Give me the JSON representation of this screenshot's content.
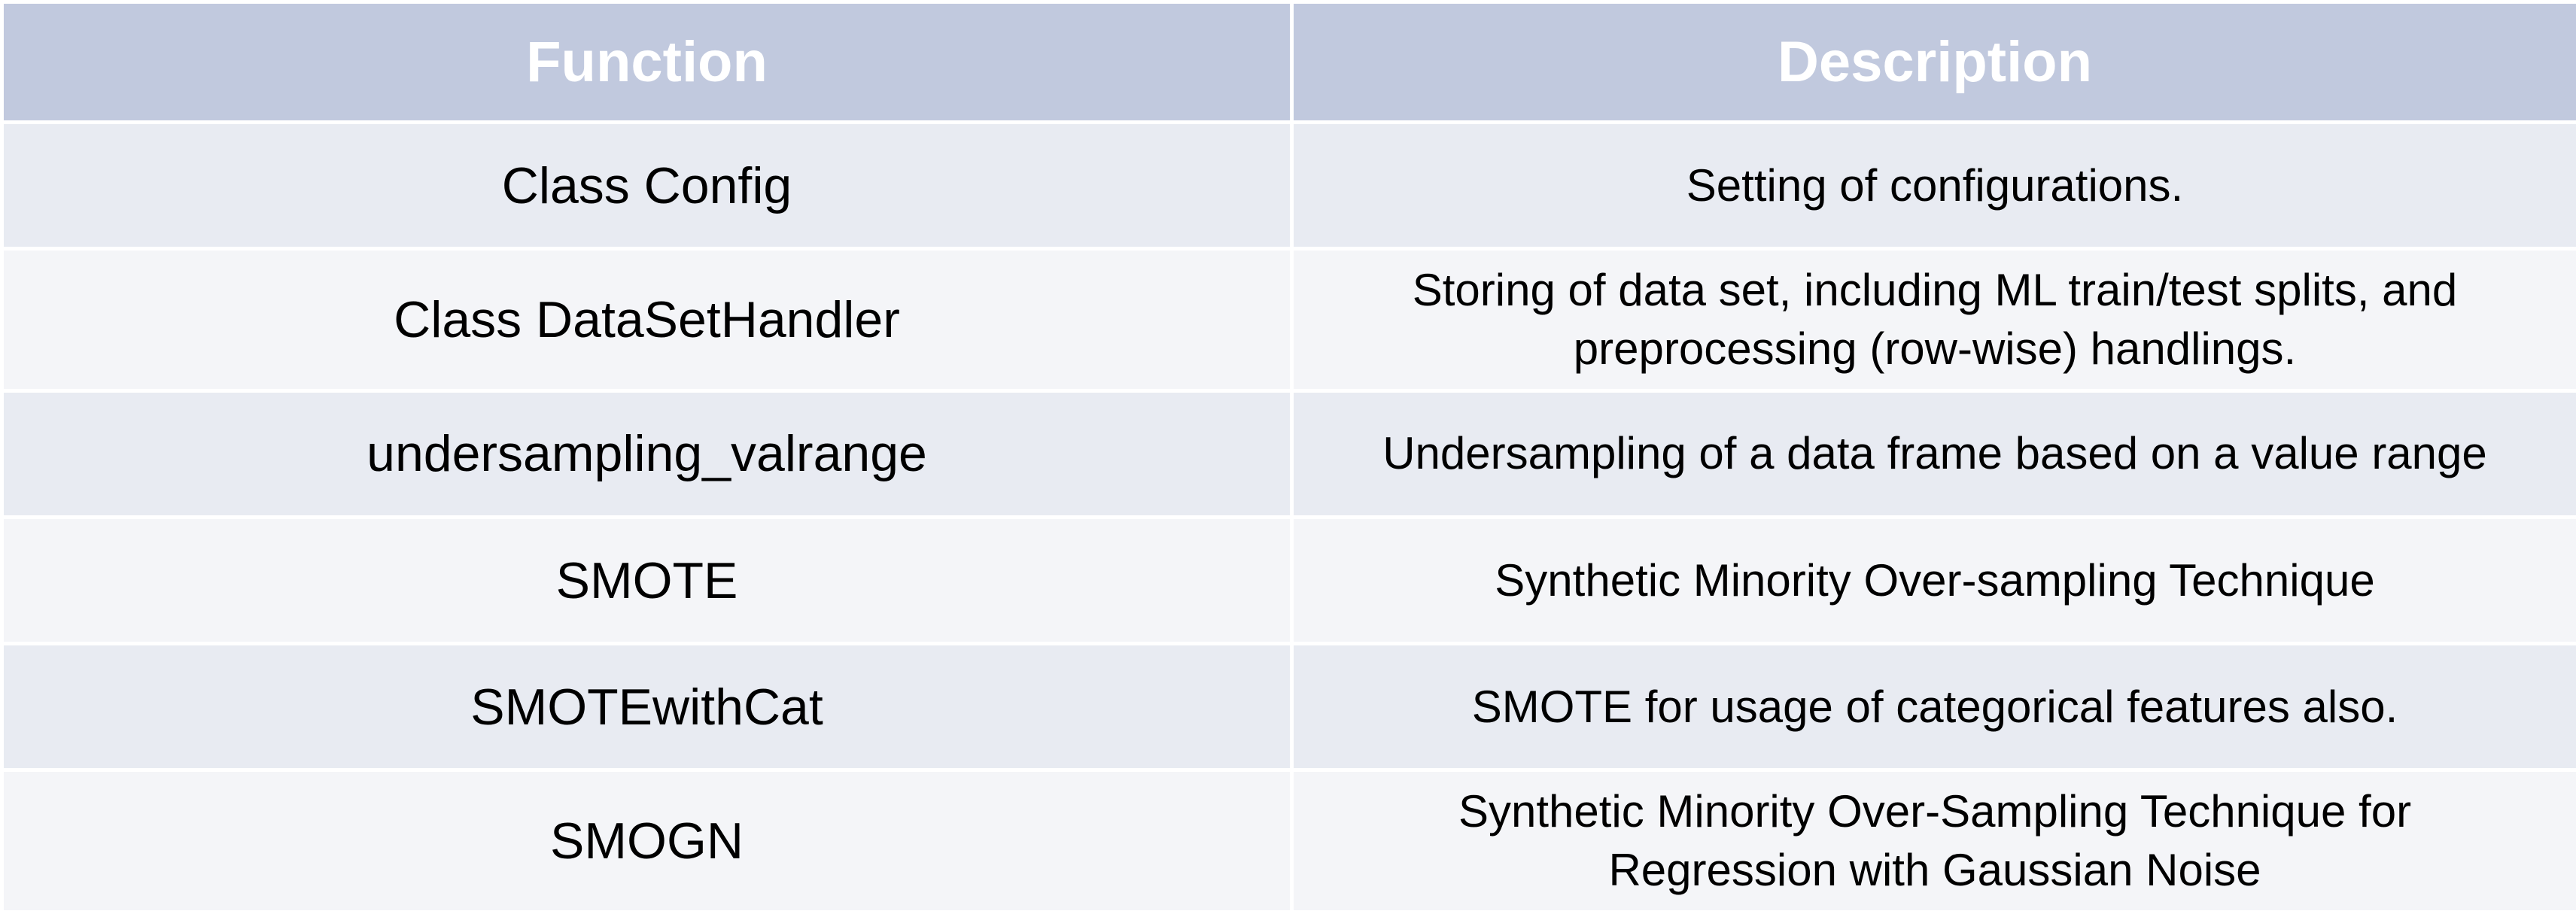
{
  "table": {
    "headers": {
      "function": "Function",
      "description": "Description"
    },
    "rows": [
      {
        "function": "Class Config",
        "description": "Setting of configurations."
      },
      {
        "function": "Class DataSetHandler",
        "description": "Storing of data set, including ML train/test splits, and\npreprocessing (row-wise) handlings."
      },
      {
        "function": "undersampling_valrange",
        "description": "Undersampling of a data frame based on a value range"
      },
      {
        "function": "SMOTE",
        "description": "Synthetic Minority Over-sampling Technique"
      },
      {
        "function": "SMOTEwithCat",
        "description": "SMOTE for usage of categorical features also."
      },
      {
        "function": "SMOGN",
        "description": "Synthetic Minority Over-Sampling Technique for\nRegression with Gaussian Noise"
      }
    ]
  },
  "colors": {
    "header_bg": "#c1c9de",
    "header_text": "#ffffff",
    "row_odd_bg": "#e8ebf2",
    "row_even_bg": "#f4f5f8"
  }
}
